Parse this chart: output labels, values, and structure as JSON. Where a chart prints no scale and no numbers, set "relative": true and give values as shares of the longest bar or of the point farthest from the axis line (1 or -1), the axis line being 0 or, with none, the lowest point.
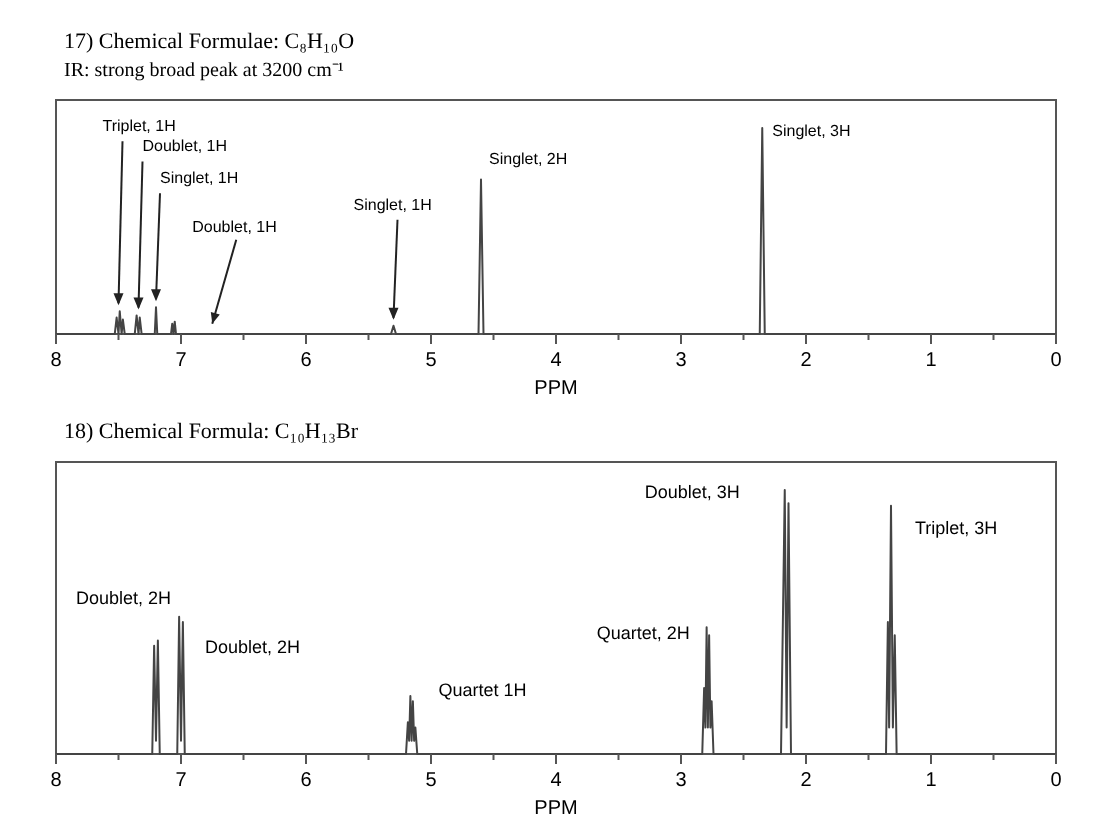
{
  "chart_data": [
    {
      "type": "line",
      "title": "17) Chemical Formulae: C₈H₁₀O",
      "subtitle": "IR: strong broad peak at 3200 cm⁻¹",
      "xlabel": "PPM",
      "relative": true,
      "xlim": [
        8,
        0
      ],
      "xticks": [
        8,
        {
          "value": 7.5,
          "label": null
        },
        7,
        {
          "value": 6.5,
          "label": null
        },
        6,
        {
          "value": 5.5,
          "label": null
        },
        5,
        {
          "value": 4.5,
          "label": null
        },
        4,
        {
          "value": 3.5,
          "label": null
        },
        3,
        {
          "value": 2.5,
          "label": null
        },
        2,
        {
          "value": 1.5,
          "label": null
        },
        1,
        {
          "value": 0.5,
          "label": null
        },
        0
      ],
      "series": [
        {
          "color": "#444444",
          "x": [
            8,
            7.53,
            7.515,
            7.5,
            7.49,
            7.475,
            7.465,
            7.45,
            7.37,
            7.355,
            7.34,
            7.33,
            7.315,
            7.21,
            7.2,
            7.19,
            7.08,
            7.07,
            7.06,
            7.05,
            7.04,
            5.32,
            5.3,
            5.28,
            4.62,
            4.6,
            4.58,
            2.37,
            2.35,
            2.33,
            0
          ],
          "values": [
            0,
            0,
            0.08,
            0,
            0.11,
            0,
            0.07,
            0,
            0,
            0.09,
            0,
            0.08,
            0,
            0,
            0.13,
            0,
            0,
            0.05,
            0,
            0.06,
            0,
            0,
            0.04,
            0,
            0,
            0.75,
            0,
            0,
            1,
            0,
            0
          ]
        }
      ],
      "annotations": [
        {
          "text": "Triplet, 1H",
          "x": 7.5,
          "y": 0.11
        },
        {
          "text": "Doublet, 1H",
          "x": 7.34,
          "y": 0.09
        },
        {
          "text": "Singlet, 1H",
          "x": 7.2,
          "y": 0.13
        },
        {
          "text": "Doublet, 1H",
          "x": 6.75,
          "y": 0.03
        },
        {
          "text": "Singlet, 1H",
          "x": 5.3,
          "y": 0.04
        },
        {
          "text": "Singlet, 2H",
          "x": 4.6,
          "y": 0.75
        },
        {
          "text": "Singlet, 3H",
          "x": 2.35,
          "y": 1
        }
      ]
    },
    {
      "type": "line",
      "title": "18) Chemical Formula: C₁₀H₁₃Br",
      "xlabel": "PPM",
      "relative": true,
      "xlim": [
        8,
        0
      ],
      "xticks": [
        8,
        {
          "value": 7.5,
          "label": null
        },
        7,
        {
          "value": 6.5,
          "label": null
        },
        6,
        {
          "value": 5.5,
          "label": null
        },
        5,
        {
          "value": 4.5,
          "label": null
        },
        4,
        {
          "value": 3.5,
          "label": null
        },
        3,
        {
          "value": 2.5,
          "label": null
        },
        2,
        {
          "value": 1.5,
          "label": null
        },
        1,
        {
          "value": 0.5,
          "label": null
        },
        0
      ],
      "series": [
        {
          "color": "#444444",
          "x": [
            8,
            7.23,
            7.215,
            7.2,
            7.185,
            7.17,
            7.03,
            7.015,
            7,
            6.985,
            6.97,
            5.2,
            5.185,
            5.175,
            5.165,
            5.155,
            5.145,
            5.135,
            5.125,
            5.11,
            2.83,
            2.815,
            2.805,
            2.795,
            2.785,
            2.775,
            2.765,
            2.755,
            2.74,
            2.2,
            2.17,
            2.155,
            2.14,
            2.12,
            1.36,
            1.345,
            1.335,
            1.32,
            1.305,
            1.29,
            1.275,
            0
          ],
          "values": [
            0,
            0,
            0.41,
            0.05,
            0.43,
            0,
            0,
            0.52,
            0.05,
            0.5,
            0,
            0,
            0.12,
            0.05,
            0.22,
            0.05,
            0.2,
            0.05,
            0.1,
            0,
            0,
            0.25,
            0.1,
            0.48,
            0.1,
            0.45,
            0.1,
            0.2,
            0,
            0,
            1,
            0.1,
            0.95,
            0,
            0,
            0.5,
            0.1,
            0.94,
            0.1,
            0.45,
            0,
            0
          ]
        }
      ],
      "annotations": [
        {
          "text": "Doublet, 2H",
          "x": 7.2,
          "y": 0.43
        },
        {
          "text": "Doublet, 2H",
          "x": 7,
          "y": 0.52
        },
        {
          "text": "Quartet 1H",
          "x": 5.165,
          "y": 0.22
        },
        {
          "text": "Quartet, 2H",
          "x": 2.795,
          "y": 0.48
        },
        {
          "text": "Doublet, 3H",
          "x": 2.17,
          "y": 1
        },
        {
          "text": "Triplet, 3H",
          "x": 1.32,
          "y": 0.94
        }
      ]
    }
  ]
}
